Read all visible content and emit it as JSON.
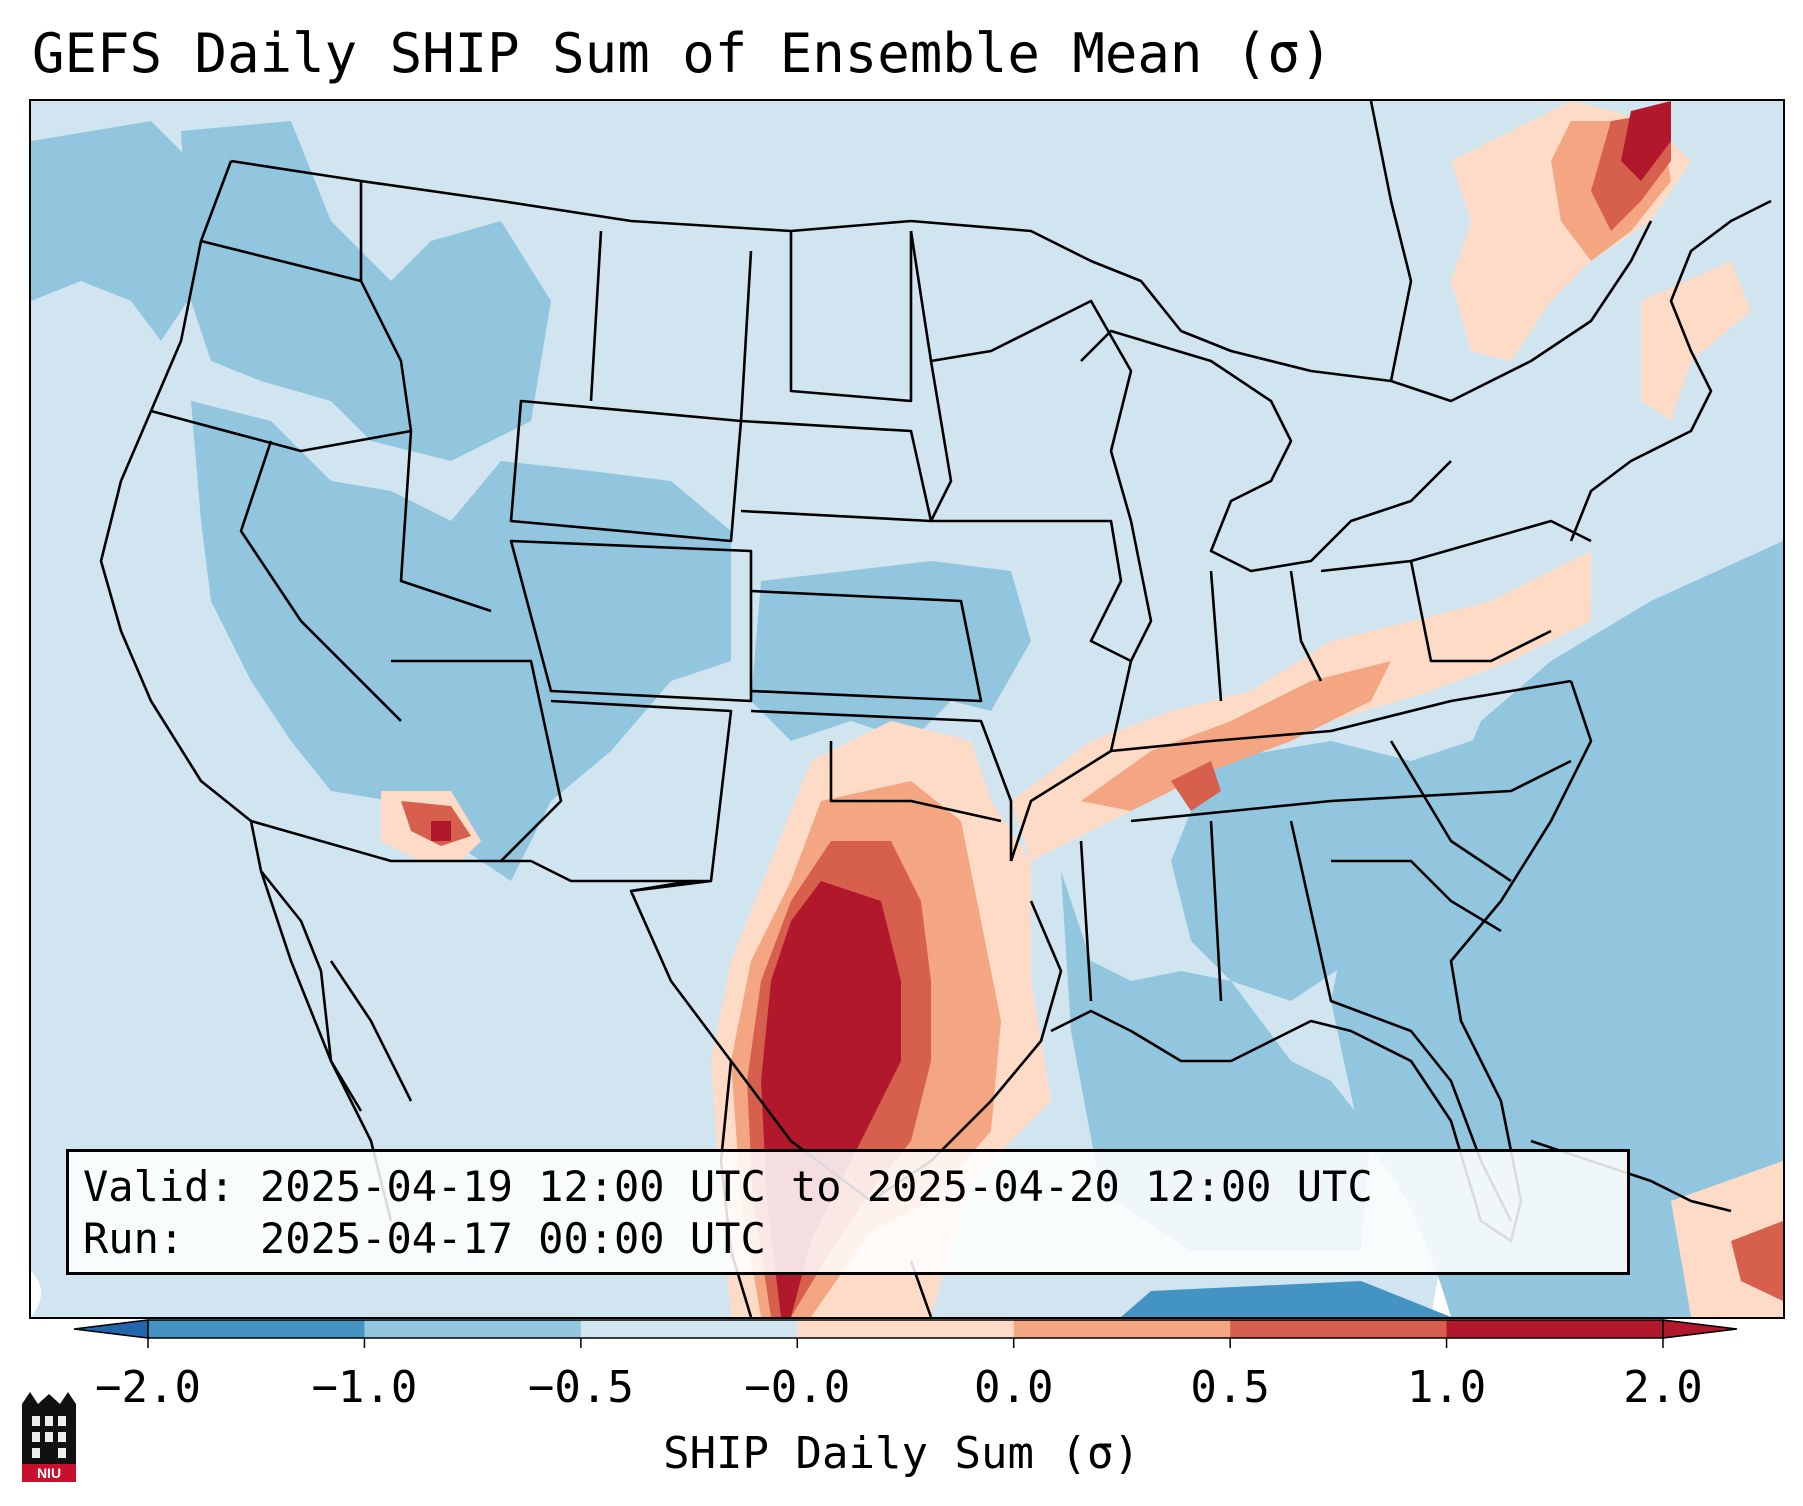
{
  "title": "GEFS Daily SHIP Sum of Ensemble Mean (σ)",
  "info": {
    "valid_label": "Valid:",
    "valid_range": "2025-04-19 12:00 UTC to 2025-04-20 12:00 UTC",
    "run_label": "Run:",
    "run_time": "2025-04-17 00:00 UTC"
  },
  "colorbar": {
    "label": "SHIP Daily Sum (σ)",
    "ticks": [
      "−2.0",
      "−1.0",
      "−0.5",
      "−0.0",
      "0.0",
      "0.5",
      "1.0",
      "2.0"
    ],
    "colors": [
      "#4393c3",
      "#92c5de",
      "#d1e5f0",
      "#fddbc7",
      "#f4a582",
      "#d6604d",
      "#b2182b"
    ],
    "under_color": "#2166ac",
    "over_color": "#b2182b"
  },
  "logo": {
    "text": "NIU"
  }
}
